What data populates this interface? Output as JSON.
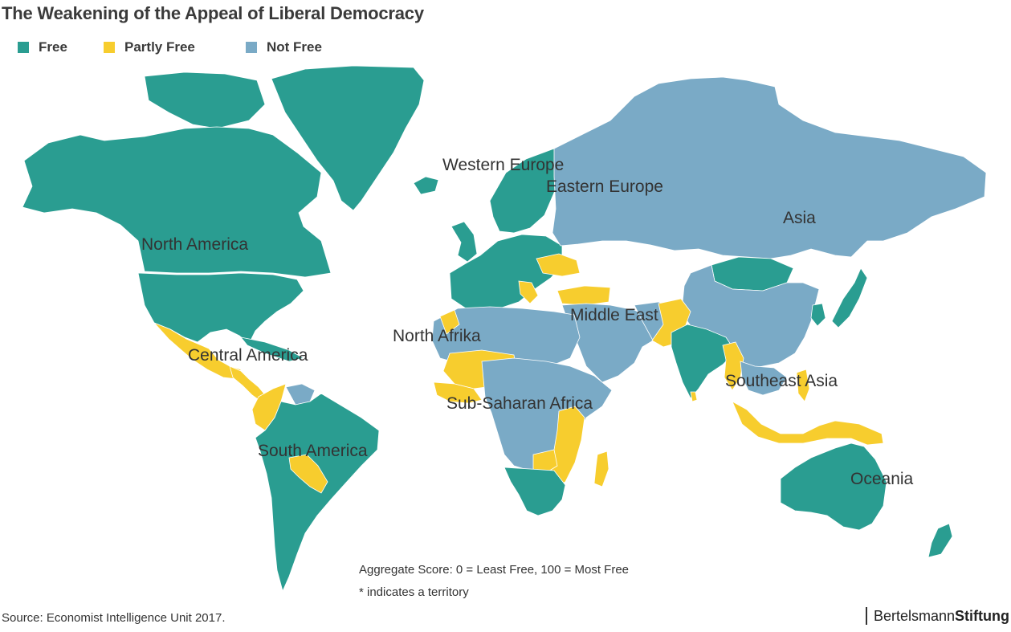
{
  "title": "The Weakening of the Appeal of Liberal Democracy",
  "legend": [
    {
      "label": "Free",
      "color": "#2a9d91"
    },
    {
      "label": "Partly Free",
      "color": "#f7cd2e"
    },
    {
      "label": "Not Free",
      "color": "#7aaac6"
    }
  ],
  "regions": {
    "north_america": "North America",
    "central_america": "Central America",
    "south_america": "South America",
    "western_europe": "Western Europe",
    "eastern_europe": "Eastern Europe",
    "north_afrika": "North Afrika",
    "sub_saharan_africa": "Sub-Saharan Africa",
    "middle_east": "Middle East",
    "asia": "Asia",
    "southeast_asia": "Southeast Asia",
    "oceania": "Oceania"
  },
  "notes": {
    "score": "Aggregate Score: 0 = Least Free, 100 = Most Free",
    "territory": "* indicates a territory"
  },
  "source": "Source: Economist Intelligence Unit 2017.",
  "brand": {
    "part1": "Bertelsmann",
    "part2": "Stiftung"
  }
}
